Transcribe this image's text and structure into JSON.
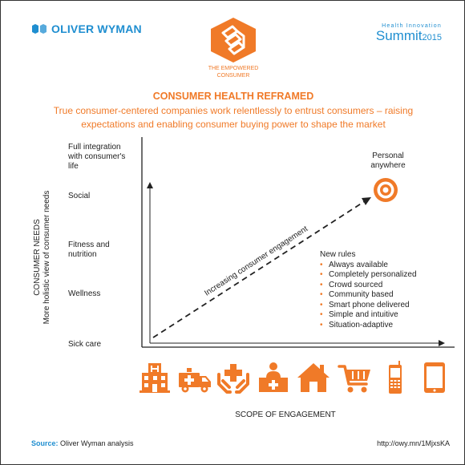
{
  "brand": {
    "name": "OLIVER WYMAN"
  },
  "summit": {
    "top": "Health Innovation",
    "word": "Summit",
    "year": "2015"
  },
  "logo": {
    "caption_line1": "THE EMPOWERED",
    "caption_line2": "CONSUMER"
  },
  "headline": "CONSUMER HEALTH REFRAMED",
  "subtitle": "True consumer-centered companies work relentlessly to entrust consumers – raising expectations and enabling consumer buying power to shape the market",
  "y_axis": {
    "title": "CONSUMER NEEDS",
    "subtitle": "More holistic view of consumer needs",
    "levels": [
      "Full integration with consumer's life",
      "Social",
      "Fitness and nutrition",
      "Wellness",
      "Sick care"
    ]
  },
  "x_axis": {
    "title": "SCOPE OF ENGAGEMENT"
  },
  "arrow_label": "Increasing consumer engagement",
  "target_label": "Personal anywhere",
  "new_rules": {
    "title": "New rules",
    "items": [
      "Always available",
      "Completely personalized",
      "Crowd sourced",
      "Community based",
      "Smart phone delivered",
      "Simple and intuitive",
      "Situation-adaptive"
    ]
  },
  "icons": [
    "hospital-icon",
    "ambulance-icon",
    "caring-hands-icon",
    "clinic-desk-icon",
    "home-icon",
    "shopping-cart-icon",
    "mobile-phone-icon",
    "tablet-icon"
  ],
  "source": {
    "label": "Source:",
    "text": "Oliver Wyman analysis"
  },
  "url": "http://owy.mn/1MjxsKA",
  "colors": {
    "accent": "#f07a28",
    "brand": "#1f8ed0",
    "axis": "#222222"
  }
}
